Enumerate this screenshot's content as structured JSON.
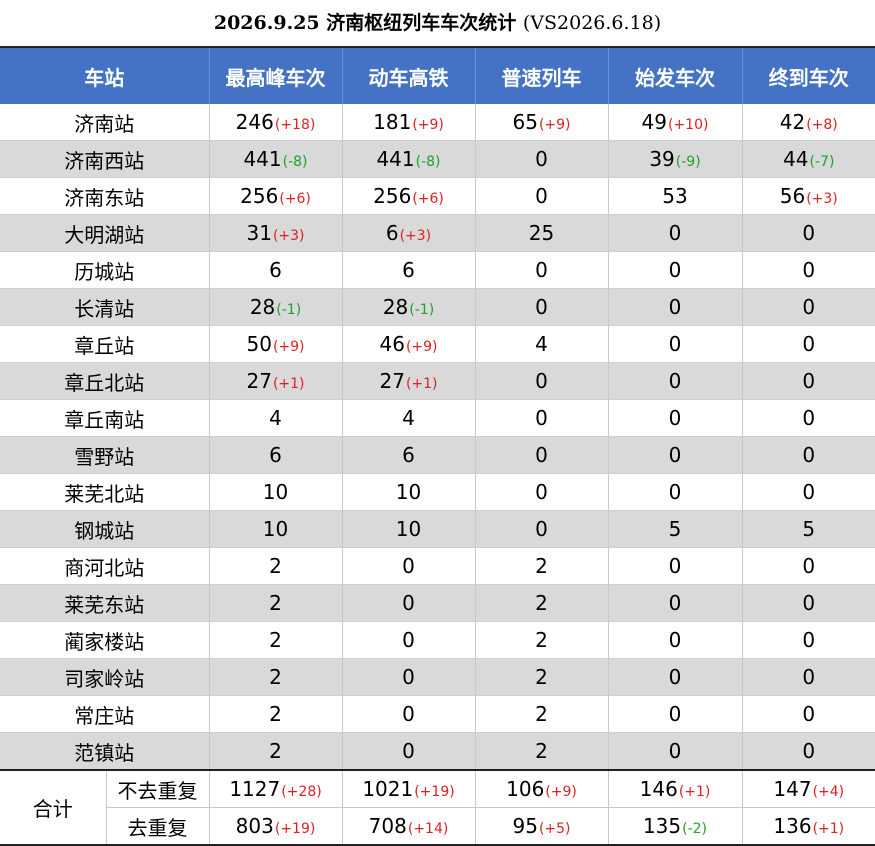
{
  "title": {
    "main": "2026.9.25 济南枢纽列车车次统计",
    "compare": "(VS2026.6.18)"
  },
  "colors": {
    "header_bg": "#4472c4",
    "alt_row_bg": "#d9d9d9",
    "increase": "#e02020",
    "decrease": "#1fa02a"
  },
  "columns": [
    "车站",
    "最高峰车次",
    "动车高铁",
    "普速列车",
    "始发车次",
    "终到车次"
  ],
  "rows": [
    {
      "station": "济南站",
      "cells": [
        {
          "v": "246",
          "d": "(+18)"
        },
        {
          "v": "181",
          "d": "(+9)"
        },
        {
          "v": "65",
          "d": "(+9)"
        },
        {
          "v": "49",
          "d": "(+10)"
        },
        {
          "v": "42",
          "d": "(+8)"
        }
      ]
    },
    {
      "station": "济南西站",
      "cells": [
        {
          "v": "441",
          "d": "(-8)"
        },
        {
          "v": "441",
          "d": "(-8)"
        },
        {
          "v": "0",
          "d": ""
        },
        {
          "v": "39",
          "d": "(-9)"
        },
        {
          "v": "44",
          "d": "(-7)"
        }
      ]
    },
    {
      "station": "济南东站",
      "cells": [
        {
          "v": "256",
          "d": "(+6)"
        },
        {
          "v": "256",
          "d": "(+6)"
        },
        {
          "v": "0",
          "d": ""
        },
        {
          "v": "53",
          "d": ""
        },
        {
          "v": "56",
          "d": "(+3)"
        }
      ]
    },
    {
      "station": "大明湖站",
      "cells": [
        {
          "v": "31",
          "d": "(+3)"
        },
        {
          "v": "6",
          "d": "(+3)"
        },
        {
          "v": "25",
          "d": ""
        },
        {
          "v": "0",
          "d": ""
        },
        {
          "v": "0",
          "d": ""
        }
      ]
    },
    {
      "station": "历城站",
      "cells": [
        {
          "v": "6",
          "d": ""
        },
        {
          "v": "6",
          "d": ""
        },
        {
          "v": "0",
          "d": ""
        },
        {
          "v": "0",
          "d": ""
        },
        {
          "v": "0",
          "d": ""
        }
      ]
    },
    {
      "station": "长清站",
      "cells": [
        {
          "v": "28",
          "d": "(-1)"
        },
        {
          "v": "28",
          "d": "(-1)"
        },
        {
          "v": "0",
          "d": ""
        },
        {
          "v": "0",
          "d": ""
        },
        {
          "v": "0",
          "d": ""
        }
      ]
    },
    {
      "station": "章丘站",
      "cells": [
        {
          "v": "50",
          "d": "(+9)"
        },
        {
          "v": "46",
          "d": "(+9)"
        },
        {
          "v": "4",
          "d": ""
        },
        {
          "v": "0",
          "d": ""
        },
        {
          "v": "0",
          "d": ""
        }
      ]
    },
    {
      "station": "章丘北站",
      "cells": [
        {
          "v": "27",
          "d": "(+1)"
        },
        {
          "v": "27",
          "d": "(+1)"
        },
        {
          "v": "0",
          "d": ""
        },
        {
          "v": "0",
          "d": ""
        },
        {
          "v": "0",
          "d": ""
        }
      ]
    },
    {
      "station": "章丘南站",
      "cells": [
        {
          "v": "4",
          "d": ""
        },
        {
          "v": "4",
          "d": ""
        },
        {
          "v": "0",
          "d": ""
        },
        {
          "v": "0",
          "d": ""
        },
        {
          "v": "0",
          "d": ""
        }
      ]
    },
    {
      "station": "雪野站",
      "cells": [
        {
          "v": "6",
          "d": ""
        },
        {
          "v": "6",
          "d": ""
        },
        {
          "v": "0",
          "d": ""
        },
        {
          "v": "0",
          "d": ""
        },
        {
          "v": "0",
          "d": ""
        }
      ]
    },
    {
      "station": "莱芜北站",
      "cells": [
        {
          "v": "10",
          "d": ""
        },
        {
          "v": "10",
          "d": ""
        },
        {
          "v": "0",
          "d": ""
        },
        {
          "v": "0",
          "d": ""
        },
        {
          "v": "0",
          "d": ""
        }
      ]
    },
    {
      "station": "钢城站",
      "cells": [
        {
          "v": "10",
          "d": ""
        },
        {
          "v": "10",
          "d": ""
        },
        {
          "v": "0",
          "d": ""
        },
        {
          "v": "5",
          "d": ""
        },
        {
          "v": "5",
          "d": ""
        }
      ]
    },
    {
      "station": "商河北站",
      "cells": [
        {
          "v": "2",
          "d": ""
        },
        {
          "v": "0",
          "d": ""
        },
        {
          "v": "2",
          "d": ""
        },
        {
          "v": "0",
          "d": ""
        },
        {
          "v": "0",
          "d": ""
        }
      ]
    },
    {
      "station": "莱芜东站",
      "cells": [
        {
          "v": "2",
          "d": ""
        },
        {
          "v": "0",
          "d": ""
        },
        {
          "v": "2",
          "d": ""
        },
        {
          "v": "0",
          "d": ""
        },
        {
          "v": "0",
          "d": ""
        }
      ]
    },
    {
      "station": "蔺家楼站",
      "cells": [
        {
          "v": "2",
          "d": ""
        },
        {
          "v": "0",
          "d": ""
        },
        {
          "v": "2",
          "d": ""
        },
        {
          "v": "0",
          "d": ""
        },
        {
          "v": "0",
          "d": ""
        }
      ]
    },
    {
      "station": "司家岭站",
      "cells": [
        {
          "v": "2",
          "d": ""
        },
        {
          "v": "0",
          "d": ""
        },
        {
          "v": "2",
          "d": ""
        },
        {
          "v": "0",
          "d": ""
        },
        {
          "v": "0",
          "d": ""
        }
      ]
    },
    {
      "station": "常庄站",
      "cells": [
        {
          "v": "2",
          "d": ""
        },
        {
          "v": "0",
          "d": ""
        },
        {
          "v": "2",
          "d": ""
        },
        {
          "v": "0",
          "d": ""
        },
        {
          "v": "0",
          "d": ""
        }
      ]
    },
    {
      "station": "范镇站",
      "cells": [
        {
          "v": "2",
          "d": ""
        },
        {
          "v": "0",
          "d": ""
        },
        {
          "v": "2",
          "d": ""
        },
        {
          "v": "0",
          "d": ""
        },
        {
          "v": "0",
          "d": ""
        }
      ]
    }
  ],
  "totals": {
    "label": "合计",
    "rows": [
      {
        "label": "不去重复",
        "cells": [
          {
            "v": "1127",
            "d": "(+28)"
          },
          {
            "v": "1021",
            "d": "(+19)"
          },
          {
            "v": "106",
            "d": "(+9)"
          },
          {
            "v": "146",
            "d": "(+1)"
          },
          {
            "v": "147",
            "d": "(+4)"
          }
        ]
      },
      {
        "label": "去重复",
        "cells": [
          {
            "v": "803",
            "d": "(+19)"
          },
          {
            "v": "708",
            "d": "(+14)"
          },
          {
            "v": "95",
            "d": "(+5)"
          },
          {
            "v": "135",
            "d": "(-2)"
          },
          {
            "v": "136",
            "d": "(+1)"
          }
        ]
      }
    ]
  }
}
